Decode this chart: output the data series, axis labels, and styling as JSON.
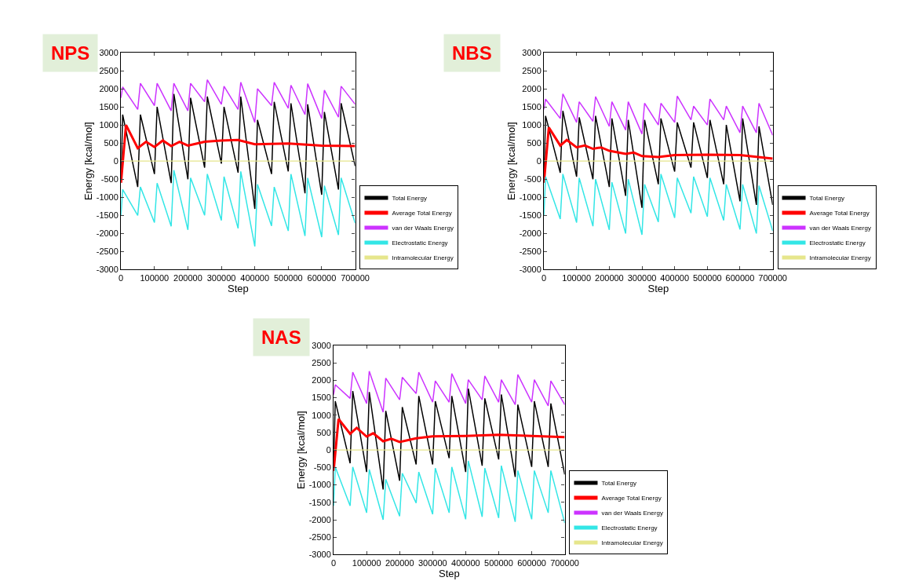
{
  "chart_data": [
    {
      "type": "line",
      "title": "NPS",
      "xlabel": "Step",
      "ylabel": "Energy [kcal/mol]",
      "xlim": [
        0,
        700000
      ],
      "xticks": [
        0,
        100000,
        200000,
        300000,
        400000,
        500000,
        600000,
        700000
      ],
      "ylim": [
        -3000,
        3000
      ],
      "yticks": [
        -3000,
        -2500,
        -2000,
        -1500,
        -1000,
        -500,
        0,
        500,
        1000,
        1500,
        2000,
        2500,
        3000
      ],
      "legend": "bottom right",
      "x": [
        0,
        5000,
        50000,
        58000,
        100000,
        108000,
        150000,
        158000,
        200000,
        208000,
        250000,
        258000,
        300000,
        308000,
        350000,
        358000,
        400000,
        408000,
        450000,
        458000,
        500000,
        508000,
        550000,
        558000,
        600000,
        608000,
        650000,
        658000,
        700000
      ],
      "series": [
        {
          "name": "Total Energy",
          "color": "#000000",
          "values": [
            -500,
            1285,
            -714,
            1285,
            -357,
            1500,
            -607,
            1857,
            -500,
            1750,
            -180,
            1785,
            -70,
            1500,
            -320,
            1785,
            -1320,
            1140,
            -357,
            1640,
            -285,
            1600,
            -890,
            1570,
            -930,
            1360,
            -785,
            1600,
            -140
          ]
        },
        {
          "name": "Average Total Energy",
          "color": "#ff0000",
          "x": [
            0,
            15000,
            50000,
            75000,
            100000,
            125000,
            150000,
            175000,
            200000,
            250000,
            300000,
            350000,
            400000,
            500000,
            600000,
            700000
          ],
          "values": [
            -600,
            1000,
            357,
            535,
            390,
            570,
            415,
            535,
            430,
            535,
            570,
            585,
            465,
            485,
            430,
            415
          ]
        },
        {
          "name": "van der Waals Energy",
          "color": "#cc33ff",
          "values": [
            1750,
            2050,
            1430,
            2150,
            1535,
            2150,
            1390,
            2150,
            1390,
            2150,
            1640,
            2250,
            1570,
            2070,
            1430,
            2180,
            1070,
            2000,
            1535,
            2180,
            1460,
            2100,
            1285,
            2140,
            1180,
            1960,
            1215,
            2070,
            1570
          ]
        },
        {
          "name": "Electrostatic Energy",
          "color": "#33e6e6",
          "values": [
            -1500,
            -785,
            -1500,
            -714,
            -1700,
            -607,
            -1800,
            -250,
            -1900,
            -464,
            -1500,
            -357,
            -1640,
            -430,
            -1860,
            -285,
            -2360,
            -643,
            -1790,
            -714,
            -1930,
            -357,
            -2070,
            -464,
            -2100,
            -680,
            -2040,
            -464,
            -1715
          ]
        },
        {
          "name": "Intramolecular Energy",
          "color": "#e6e68c",
          "x": [
            0,
            700000
          ],
          "values": [
            0,
            0
          ]
        }
      ]
    },
    {
      "type": "line",
      "title": "NBS",
      "xlabel": "Step",
      "ylabel": "Energy [kcal/mol]",
      "xlim": [
        0,
        700000
      ],
      "xticks": [
        0,
        100000,
        200000,
        300000,
        400000,
        500000,
        600000,
        700000
      ],
      "ylim": [
        -3000,
        3000
      ],
      "yticks": [
        -3000,
        -2500,
        -2000,
        -1500,
        -1000,
        -500,
        0,
        500,
        1000,
        1500,
        2000,
        2500,
        3000
      ],
      "legend": "bottom right",
      "x": [
        0,
        5000,
        50000,
        58000,
        100000,
        108000,
        150000,
        158000,
        200000,
        208000,
        250000,
        258000,
        300000,
        308000,
        350000,
        358000,
        400000,
        408000,
        450000,
        458000,
        500000,
        508000,
        550000,
        558000,
        600000,
        608000,
        650000,
        658000,
        700000
      ],
      "series": [
        {
          "name": "Total Energy",
          "color": "#000000",
          "values": [
            -500,
            1250,
            -320,
            1390,
            -430,
            1210,
            -500,
            1250,
            -714,
            1180,
            -960,
            1140,
            -1290,
            1140,
            -640,
            1180,
            -290,
            1070,
            -180,
            1070,
            -464,
            1140,
            -640,
            1000,
            -1110,
            1180,
            -1210,
            960,
            -1210
          ]
        },
        {
          "name": "Average Total Energy",
          "color": "#ff0000",
          "x": [
            0,
            15000,
            50000,
            70000,
            100000,
            125000,
            150000,
            175000,
            200000,
            250000,
            275000,
            300000,
            350000,
            400000,
            500000,
            600000,
            700000
          ],
          "values": [
            -600,
            930,
            430,
            585,
            380,
            430,
            340,
            380,
            285,
            200,
            235,
            140,
            115,
            165,
            180,
            165,
            70
          ]
        },
        {
          "name": "van der Waals Energy",
          "color": "#cc33ff",
          "values": [
            1430,
            1715,
            1180,
            1860,
            1070,
            1640,
            1100,
            1785,
            960,
            1640,
            860,
            1640,
            750,
            1600,
            1000,
            1600,
            1070,
            1800,
            1140,
            1520,
            1000,
            1715,
            1140,
            1520,
            785,
            1520,
            785,
            1600,
            715
          ]
        },
        {
          "name": "Electrostatic Energy",
          "color": "#33e6e6",
          "values": [
            -1500,
            -430,
            -1600,
            -357,
            -1700,
            -464,
            -1800,
            -500,
            -1900,
            -585,
            -2000,
            -500,
            -2035,
            -643,
            -1680,
            -357,
            -1570,
            -464,
            -1440,
            -430,
            -1535,
            -464,
            -1640,
            -643,
            -1890,
            -643,
            -2000,
            -680,
            -1930
          ]
        },
        {
          "name": "Intramolecular Energy",
          "color": "#e6e68c",
          "x": [
            0,
            700000
          ],
          "values": [
            0,
            0
          ]
        }
      ]
    },
    {
      "type": "line",
      "title": "NAS",
      "xlabel": "Step",
      "ylabel": "Energy [kcal/mol]",
      "xlim": [
        0,
        700000
      ],
      "xticks": [
        0,
        100000,
        200000,
        300000,
        400000,
        500000,
        600000,
        700000
      ],
      "ylim": [
        -3000,
        3000
      ],
      "yticks": [
        -3000,
        -2500,
        -2000,
        -1500,
        -1000,
        -500,
        0,
        500,
        1000,
        1500,
        2000,
        2500,
        3000
      ],
      "legend": "bottom right",
      "x": [
        0,
        5000,
        50000,
        58000,
        100000,
        108000,
        150000,
        158000,
        200000,
        208000,
        250000,
        258000,
        300000,
        308000,
        350000,
        358000,
        400000,
        408000,
        450000,
        458000,
        500000,
        508000,
        550000,
        558000,
        600000,
        608000,
        650000,
        658000,
        700000
      ],
      "series": [
        {
          "name": "Total Energy",
          "color": "#000000",
          "values": [
            -500,
            1400,
            -380,
            1690,
            -630,
            1660,
            -1130,
            1120,
            -880,
            1230,
            -415,
            1550,
            -415,
            1400,
            -235,
            1550,
            -630,
            1760,
            -450,
            1480,
            -270,
            1590,
            -770,
            1300,
            -485,
            1400,
            -485,
            1335,
            -700
          ]
        },
        {
          "name": "Average Total Energy",
          "color": "#ff0000",
          "x": [
            0,
            15000,
            50000,
            70000,
            100000,
            120000,
            150000,
            175000,
            200000,
            250000,
            300000,
            400000,
            500000,
            600000,
            700000
          ],
          "values": [
            -600,
            890,
            465,
            635,
            385,
            480,
            250,
            320,
            230,
            335,
            390,
            405,
            435,
            405,
            370
          ]
        },
        {
          "name": "van der Waals Energy",
          "color": "#cc33ff",
          "values": [
            1585,
            1870,
            1480,
            2230,
            1335,
            2260,
            1085,
            2060,
            1440,
            2085,
            1620,
            2230,
            1370,
            1980,
            1370,
            2190,
            1335,
            2015,
            1440,
            2120,
            1370,
            2015,
            1300,
            2160,
            1370,
            2015,
            1265,
            1980,
            1300
          ]
        },
        {
          "name": "Electrostatic Energy",
          "color": "#33e6e6",
          "values": [
            -1600,
            -485,
            -1600,
            -485,
            -1800,
            -560,
            -2000,
            -840,
            -1900,
            -665,
            -1520,
            -630,
            -1840,
            -520,
            -1800,
            -485,
            -1985,
            -310,
            -1915,
            -520,
            -1950,
            -450,
            -2060,
            -590,
            -1985,
            -590,
            -1800,
            -590,
            -2090
          ]
        },
        {
          "name": "Intramolecular Energy",
          "color": "#e6e68c",
          "x": [
            0,
            700000
          ],
          "values": [
            0,
            0
          ]
        }
      ]
    }
  ]
}
